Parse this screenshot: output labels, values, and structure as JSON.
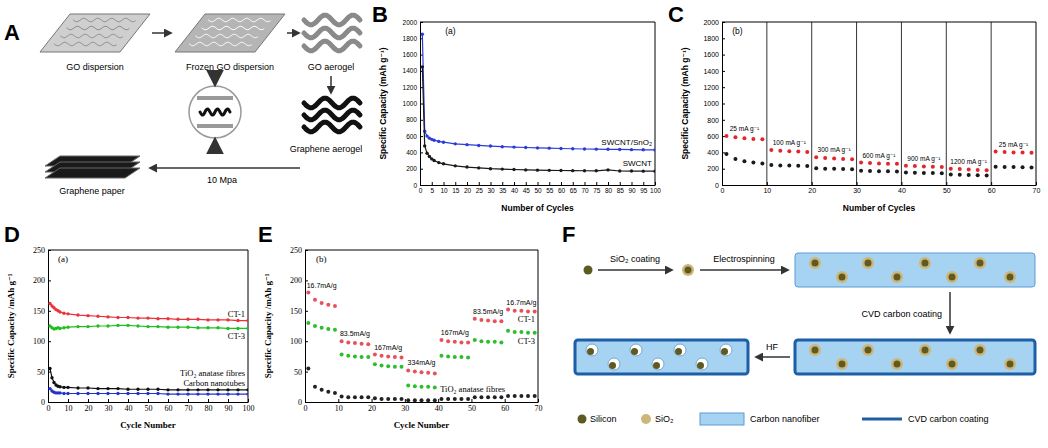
{
  "chart_data": [
    {
      "panel_label": "B",
      "type": "line",
      "subtitle": "(a)",
      "xlabel": "Number of Cycles",
      "ylabel": "Specific Capacity (mAh g⁻¹)",
      "x": [
        1,
        2,
        3,
        4,
        5,
        6,
        8,
        10,
        15,
        20,
        25,
        30,
        35,
        40,
        45,
        50,
        55,
        60,
        65,
        70,
        75,
        80,
        85,
        90,
        95,
        100
      ],
      "xlim": [
        0,
        100
      ],
      "xticks": [
        0,
        5,
        10,
        15,
        20,
        25,
        30,
        35,
        40,
        45,
        50,
        55,
        60,
        65,
        70,
        75,
        80,
        85,
        90,
        95,
        100
      ],
      "ylim": [
        0,
        2000
      ],
      "yticks": [
        0,
        200,
        400,
        600,
        800,
        1000,
        1200,
        1400,
        1600,
        1800,
        2000
      ],
      "marker": "circle",
      "line_style": "solid",
      "series": [
        {
          "name": "SWCNT/SnO₂",
          "color": "#2b3bd9",
          "values": [
            1850,
            660,
            600,
            575,
            560,
            550,
            535,
            525,
            505,
            495,
            485,
            478,
            470,
            465,
            460,
            455,
            452,
            448,
            445,
            442,
            440,
            438,
            436,
            434,
            432,
            430
          ]
        },
        {
          "name": "SWCNT",
          "color": "#1a1a1a",
          "values": [
            1450,
            480,
            390,
            350,
            320,
            300,
            275,
            260,
            235,
            220,
            210,
            200,
            195,
            190,
            185,
            182,
            180,
            178,
            176,
            175,
            174,
            185,
            172,
            171,
            170,
            170
          ]
        }
      ]
    },
    {
      "panel_label": "C",
      "type": "scatter",
      "subtitle": "(b)",
      "xlabel": "Number of Cycles",
      "ylabel": "Specific Capacity (mAh g⁻¹)",
      "x": [
        1,
        3,
        5,
        7,
        9,
        11,
        13,
        15,
        17,
        19,
        21,
        23,
        25,
        27,
        29,
        31,
        33,
        35,
        37,
        39,
        41,
        43,
        45,
        47,
        49,
        51,
        53,
        55,
        57,
        59,
        61,
        63,
        65,
        67,
        69
      ],
      "xlim": [
        0,
        70
      ],
      "xticks": [
        0,
        10,
        20,
        30,
        40,
        50,
        60,
        70
      ],
      "ylim": [
        0,
        2000
      ],
      "yticks": [
        0,
        200,
        400,
        600,
        800,
        1000,
        1200,
        1400,
        1600,
        1800,
        2000
      ],
      "marker": "circle",
      "annotations": [
        "25 mA g⁻¹",
        "100 mA g⁻¹",
        "300 mA g⁻¹",
        "600 mA g⁻¹",
        "900 mA g⁻¹",
        "1200 mA g⁻¹",
        "25 mA g⁻¹"
      ],
      "series": [
        {
          "color": "#e3262b",
          "values": [
            600,
            585,
            575,
            565,
            560,
            430,
            420,
            415,
            410,
            405,
            340,
            330,
            325,
            320,
            315,
            275,
            270,
            265,
            262,
            260,
            235,
            232,
            228,
            225,
            222,
            200,
            195,
            190,
            185,
            180,
            410,
            405,
            400,
            398,
            395
          ]
        },
        {
          "color": "#1a1a1a",
          "values": [
            380,
            320,
            290,
            275,
            265,
            245,
            240,
            238,
            235,
            232,
            205,
            200,
            198,
            195,
            192,
            175,
            172,
            170,
            168,
            166,
            152,
            150,
            148,
            146,
            145,
            130,
            126,
            123,
            120,
            118,
            225,
            222,
            220,
            218,
            216
          ]
        }
      ]
    },
    {
      "panel_label": "D",
      "type": "line",
      "subtitle": "(a)",
      "xlabel": "Cycle Number",
      "ylabel": "Specific Capacity /mAh g⁻¹",
      "x": [
        1,
        2,
        3,
        4,
        5,
        6,
        8,
        10,
        15,
        20,
        25,
        30,
        35,
        40,
        45,
        50,
        55,
        60,
        65,
        70,
        75,
        80,
        85,
        90,
        95,
        100
      ],
      "xlim": [
        0,
        100
      ],
      "xticks": [
        0,
        10,
        20,
        30,
        40,
        50,
        60,
        70,
        80,
        90,
        100
      ],
      "ylim": [
        0,
        250
      ],
      "yticks": [
        0,
        50,
        100,
        150,
        200,
        250
      ],
      "marker": "circle",
      "line_style": "solid",
      "series": [
        {
          "name": "CT-1",
          "color": "#e8333b",
          "values": [
            162,
            158,
            155,
            152,
            150,
            148,
            146,
            145,
            143,
            142,
            141,
            140,
            139,
            139,
            138,
            138,
            137,
            137,
            136,
            136,
            136,
            135,
            135,
            135,
            134,
            134
          ]
        },
        {
          "name": "CT-3",
          "color": "#1fbf1f",
          "values": [
            125,
            122,
            120,
            121,
            122,
            121,
            122,
            123,
            124,
            124,
            125,
            125,
            126,
            126,
            125,
            124,
            124,
            123,
            123,
            123,
            122,
            122,
            122,
            121,
            121,
            121
          ]
        },
        {
          "name": "TiO₂ anatase fibres",
          "color": "#111111",
          "values": [
            55,
            40,
            32,
            28,
            26,
            25,
            24,
            24,
            23,
            23,
            22,
            22,
            22,
            21,
            21,
            21,
            21,
            20,
            20,
            20,
            20,
            20,
            20,
            20,
            20,
            20
          ]
        },
        {
          "name": "Carbon nanotubes",
          "color": "#2233cc",
          "values": [
            22,
            18,
            16,
            15,
            15,
            15,
            14,
            14,
            14,
            14,
            14,
            14,
            14,
            14,
            14,
            14,
            14,
            13,
            13,
            13,
            13,
            13,
            13,
            13,
            13,
            13
          ]
        }
      ]
    },
    {
      "panel_label": "E",
      "type": "scatter",
      "subtitle": "(b)",
      "xlabel": "Cycle Number",
      "ylabel": "Specific Capacity /mAh g⁻¹",
      "x": [
        1,
        3,
        5,
        7,
        9,
        11,
        13,
        15,
        17,
        19,
        21,
        23,
        25,
        27,
        29,
        31,
        33,
        35,
        37,
        39,
        41,
        43,
        45,
        47,
        49,
        51,
        53,
        55,
        57,
        59,
        61,
        63,
        65,
        67,
        69
      ],
      "xlim": [
        0,
        70
      ],
      "xticks": [
        0,
        10,
        20,
        30,
        40,
        50,
        60,
        70
      ],
      "ylim": [
        0,
        250
      ],
      "yticks": [
        0,
        50,
        100,
        150,
        200,
        250
      ],
      "marker": "circle",
      "annotations": [
        "16.7mA/g",
        "83.5mA/g",
        "167mA/g",
        "334mA/g",
        "167mA/g",
        "83.5mA/g",
        "16.7mA/g"
      ],
      "series": [
        {
          "name": "CT-1",
          "color": "#e8505a",
          "values": [
            180,
            168,
            163,
            160,
            158,
            100,
            98,
            97,
            96,
            95,
            78,
            76,
            75,
            74,
            73,
            52,
            50,
            49,
            48,
            47,
            102,
            100,
            99,
            98,
            98,
            137,
            135,
            134,
            133,
            133,
            152,
            150,
            150,
            149,
            149
          ]
        },
        {
          "name": "CT-3",
          "color": "#2dbd2d",
          "values": [
            130,
            125,
            122,
            120,
            119,
            78,
            76,
            75,
            74,
            74,
            62,
            60,
            59,
            58,
            58,
            27,
            26,
            25,
            25,
            24,
            76,
            75,
            74,
            74,
            73,
            102,
            100,
            99,
            99,
            98,
            117,
            115,
            115,
            114,
            114
          ]
        },
        {
          "name": "TiO₂ anatase fibres",
          "color": "#222222",
          "values": [
            55,
            25,
            20,
            17,
            15,
            9,
            8,
            8,
            8,
            8,
            6,
            5,
            5,
            5,
            5,
            3,
            3,
            3,
            3,
            3,
            5,
            5,
            5,
            5,
            5,
            8,
            8,
            8,
            8,
            8,
            10,
            10,
            10,
            10,
            10
          ]
        }
      ]
    }
  ],
  "diagrams": [
    {
      "panel_label": "A",
      "steps": [
        "GO dispersion",
        "Frozen GO dispersion",
        "GO aerogel",
        "Graphene aerogel",
        "Graphene paper"
      ],
      "pressure": "10 Mpa"
    },
    {
      "panel_label": "F",
      "steps": [
        "SiO₂ coating",
        "Electrospinning",
        "CVD carbon coating",
        "HF"
      ],
      "key": [
        "Silicon",
        "SiO₂",
        "Carbon nanofiber",
        "CVD carbon coating"
      ]
    }
  ]
}
